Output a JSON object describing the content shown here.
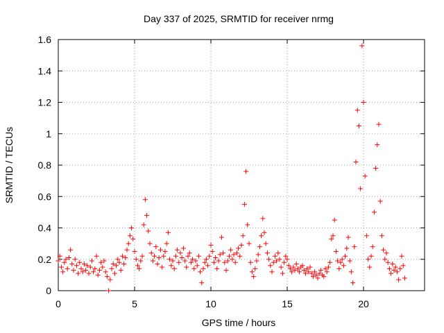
{
  "chart_data": {
    "type": "scatter",
    "title": "Day 337 of 2025, SRMTID for receiver nrmg",
    "xlabel": "GPS time / hours",
    "ylabel": "SRMTID / TECUs",
    "xlim": [
      0,
      24
    ],
    "ylim": [
      0,
      1.6
    ],
    "xticks": [
      0,
      5,
      10,
      15,
      20
    ],
    "xtick_labels": [
      "0",
      "5",
      "10",
      "15",
      "20"
    ],
    "yticks": [
      0,
      0.2,
      0.4,
      0.6,
      0.8,
      1,
      1.2,
      1.4,
      1.6
    ],
    "ytick_labels": [
      "0",
      "0.2",
      "0.4",
      "0.6",
      "0.8",
      "1",
      "1.2",
      "1.4",
      "1.6"
    ],
    "grid": true,
    "marker": "+",
    "color": "#ff0000",
    "series": [
      {
        "name": "SRMTID",
        "points": [
          [
            0.0,
            0.19
          ],
          [
            0.1,
            0.22
          ],
          [
            0.2,
            0.15
          ],
          [
            0.3,
            0.12
          ],
          [
            0.4,
            0.18
          ],
          [
            0.5,
            0.2
          ],
          [
            0.6,
            0.14
          ],
          [
            0.7,
            0.21
          ],
          [
            0.8,
            0.26
          ],
          [
            0.9,
            0.17
          ],
          [
            1.0,
            0.13
          ],
          [
            1.1,
            0.2
          ],
          [
            1.2,
            0.16
          ],
          [
            1.3,
            0.11
          ],
          [
            1.4,
            0.18
          ],
          [
            1.5,
            0.14
          ],
          [
            1.6,
            0.12
          ],
          [
            1.7,
            0.17
          ],
          [
            1.8,
            0.13
          ],
          [
            1.9,
            0.16
          ],
          [
            2.0,
            0.11
          ],
          [
            2.1,
            0.15
          ],
          [
            2.2,
            0.19
          ],
          [
            2.3,
            0.12
          ],
          [
            2.4,
            0.14
          ],
          [
            2.5,
            0.22
          ],
          [
            2.6,
            0.1
          ],
          [
            2.7,
            0.13
          ],
          [
            2.8,
            0.18
          ],
          [
            2.9,
            0.15
          ],
          [
            3.0,
            0.19
          ],
          [
            3.1,
            0.12
          ],
          [
            3.2,
            0.09
          ],
          [
            3.3,
            0.0
          ],
          [
            3.4,
            0.07
          ],
          [
            3.5,
            0.14
          ],
          [
            3.6,
            0.17
          ],
          [
            3.7,
            0.11
          ],
          [
            3.8,
            0.16
          ],
          [
            3.9,
            0.2
          ],
          [
            4.0,
            0.18
          ],
          [
            4.1,
            0.13
          ],
          [
            4.2,
            0.22
          ],
          [
            4.3,
            0.17
          ],
          [
            4.4,
            0.21
          ],
          [
            4.5,
            0.26
          ],
          [
            4.6,
            0.3
          ],
          [
            4.7,
            0.35
          ],
          [
            4.8,
            0.4
          ],
          [
            4.9,
            0.33
          ],
          [
            5.0,
            0.25
          ],
          [
            5.1,
            0.2
          ],
          [
            5.2,
            0.16
          ],
          [
            5.3,
            0.14
          ],
          [
            5.4,
            0.19
          ],
          [
            5.5,
            0.22
          ],
          [
            5.6,
            0.42
          ],
          [
            5.7,
            0.58
          ],
          [
            5.8,
            0.48
          ],
          [
            5.9,
            0.38
          ],
          [
            6.0,
            0.3
          ],
          [
            6.1,
            0.24
          ],
          [
            6.2,
            0.19
          ],
          [
            6.3,
            0.22
          ],
          [
            6.4,
            0.28
          ],
          [
            6.5,
            0.17
          ],
          [
            6.6,
            0.21
          ],
          [
            6.7,
            0.26
          ],
          [
            6.8,
            0.15
          ],
          [
            6.9,
            0.22
          ],
          [
            7.0,
            0.25
          ],
          [
            7.1,
            0.3
          ],
          [
            7.2,
            0.37
          ],
          [
            7.3,
            0.2
          ],
          [
            7.4,
            0.16
          ],
          [
            7.5,
            0.19
          ],
          [
            7.6,
            0.14
          ],
          [
            7.7,
            0.22
          ],
          [
            7.8,
            0.26
          ],
          [
            7.9,
            0.18
          ],
          [
            8.0,
            0.24
          ],
          [
            8.1,
            0.21
          ],
          [
            8.2,
            0.27
          ],
          [
            8.3,
            0.19
          ],
          [
            8.4,
            0.15
          ],
          [
            8.5,
            0.22
          ],
          [
            8.6,
            0.24
          ],
          [
            8.7,
            0.18
          ],
          [
            8.8,
            0.2
          ],
          [
            8.9,
            0.14
          ],
          [
            9.0,
            0.19
          ],
          [
            9.1,
            0.16
          ],
          [
            9.2,
            0.22
          ],
          [
            9.3,
            0.12
          ],
          [
            9.4,
            0.05
          ],
          [
            9.5,
            0.14
          ],
          [
            9.6,
            0.18
          ],
          [
            9.7,
            0.2
          ],
          [
            9.8,
            0.16
          ],
          [
            9.9,
            0.22
          ],
          [
            10.0,
            0.29
          ],
          [
            10.1,
            0.25
          ],
          [
            10.2,
            0.18
          ],
          [
            10.3,
            0.21
          ],
          [
            10.4,
            0.14
          ],
          [
            10.5,
            0.19
          ],
          [
            10.6,
            0.23
          ],
          [
            10.7,
            0.34
          ],
          [
            10.8,
            0.24
          ],
          [
            10.9,
            0.18
          ],
          [
            11.0,
            0.13
          ],
          [
            11.1,
            0.19
          ],
          [
            11.2,
            0.22
          ],
          [
            11.3,
            0.26
          ],
          [
            11.4,
            0.2
          ],
          [
            11.5,
            0.23
          ],
          [
            11.6,
            0.18
          ],
          [
            11.7,
            0.24
          ],
          [
            11.8,
            0.27
          ],
          [
            11.9,
            0.22
          ],
          [
            12.0,
            0.29
          ],
          [
            12.1,
            0.35
          ],
          [
            12.2,
            0.55
          ],
          [
            12.3,
            0.76
          ],
          [
            12.4,
            0.42
          ],
          [
            12.5,
            0.3
          ],
          [
            12.6,
            0.18
          ],
          [
            12.7,
            0.12
          ],
          [
            12.8,
            0.09
          ],
          [
            12.9,
            0.14
          ],
          [
            13.0,
            0.19
          ],
          [
            13.1,
            0.23
          ],
          [
            13.2,
            0.28
          ],
          [
            13.3,
            0.35
          ],
          [
            13.4,
            0.46
          ],
          [
            13.5,
            0.37
          ],
          [
            13.6,
            0.3
          ],
          [
            13.7,
            0.24
          ],
          [
            13.8,
            0.2
          ],
          [
            13.9,
            0.16
          ],
          [
            14.0,
            0.12
          ],
          [
            14.1,
            0.18
          ],
          [
            14.2,
            0.22
          ],
          [
            14.3,
            0.19
          ],
          [
            14.4,
            0.24
          ],
          [
            14.5,
            0.2
          ],
          [
            14.6,
            0.15
          ],
          [
            14.7,
            0.11
          ],
          [
            14.8,
            0.18
          ],
          [
            14.9,
            0.22
          ],
          [
            15.0,
            0.2
          ],
          [
            15.1,
            0.16
          ],
          [
            15.2,
            0.14
          ],
          [
            15.3,
            0.12
          ],
          [
            15.4,
            0.15
          ],
          [
            15.5,
            0.13
          ],
          [
            15.6,
            0.17
          ],
          [
            15.7,
            0.14
          ],
          [
            15.8,
            0.12
          ],
          [
            15.9,
            0.15
          ],
          [
            16.0,
            0.16
          ],
          [
            16.1,
            0.13
          ],
          [
            16.2,
            0.11
          ],
          [
            16.3,
            0.14
          ],
          [
            16.4,
            0.12
          ],
          [
            16.5,
            0.15
          ],
          [
            16.6,
            0.11
          ],
          [
            16.7,
            0.09
          ],
          [
            16.8,
            0.12
          ],
          [
            16.9,
            0.1
          ],
          [
            17.0,
            0.08
          ],
          [
            17.1,
            0.11
          ],
          [
            17.2,
            0.13
          ],
          [
            17.3,
            0.1
          ],
          [
            17.4,
            0.09
          ],
          [
            17.5,
            0.14
          ],
          [
            17.6,
            0.12
          ],
          [
            17.7,
            0.15
          ],
          [
            17.8,
            0.18
          ],
          [
            17.9,
            0.33
          ],
          [
            18.0,
            0.35
          ],
          [
            18.1,
            0.45
          ],
          [
            18.2,
            0.25
          ],
          [
            18.3,
            0.19
          ],
          [
            18.4,
            0.14
          ],
          [
            18.5,
            0.18
          ],
          [
            18.6,
            0.2
          ],
          [
            18.7,
            0.16
          ],
          [
            18.8,
            0.22
          ],
          [
            18.9,
            0.27
          ],
          [
            19.0,
            0.34
          ],
          [
            19.1,
            0.19
          ],
          [
            19.2,
            0.12
          ],
          [
            19.3,
            0.05
          ],
          [
            19.4,
            0.28
          ],
          [
            19.5,
            0.82
          ],
          [
            19.6,
            1.15
          ],
          [
            19.7,
            1.05
          ],
          [
            19.8,
            0.65
          ],
          [
            19.9,
            1.56
          ],
          [
            20.0,
            1.2
          ],
          [
            20.1,
            0.73
          ],
          [
            20.2,
            0.35
          ],
          [
            20.3,
            0.2
          ],
          [
            20.4,
            0.15
          ],
          [
            20.5,
            0.22
          ],
          [
            20.6,
            0.28
          ],
          [
            20.7,
            0.5
          ],
          [
            20.8,
            0.78
          ],
          [
            20.9,
            0.93
          ],
          [
            21.0,
            1.06
          ],
          [
            21.1,
            0.57
          ],
          [
            21.2,
            0.35
          ],
          [
            21.3,
            0.26
          ],
          [
            21.4,
            0.2
          ],
          [
            21.5,
            0.24
          ],
          [
            21.6,
            0.18
          ],
          [
            21.7,
            0.14
          ],
          [
            21.8,
            0.11
          ],
          [
            21.9,
            0.17
          ],
          [
            22.0,
            0.13
          ],
          [
            22.1,
            0.15
          ],
          [
            22.2,
            0.12
          ],
          [
            22.3,
            0.07
          ],
          [
            22.4,
            0.14
          ],
          [
            22.5,
            0.22
          ],
          [
            22.6,
            0.16
          ],
          [
            22.7,
            0.08
          ]
        ]
      }
    ]
  }
}
